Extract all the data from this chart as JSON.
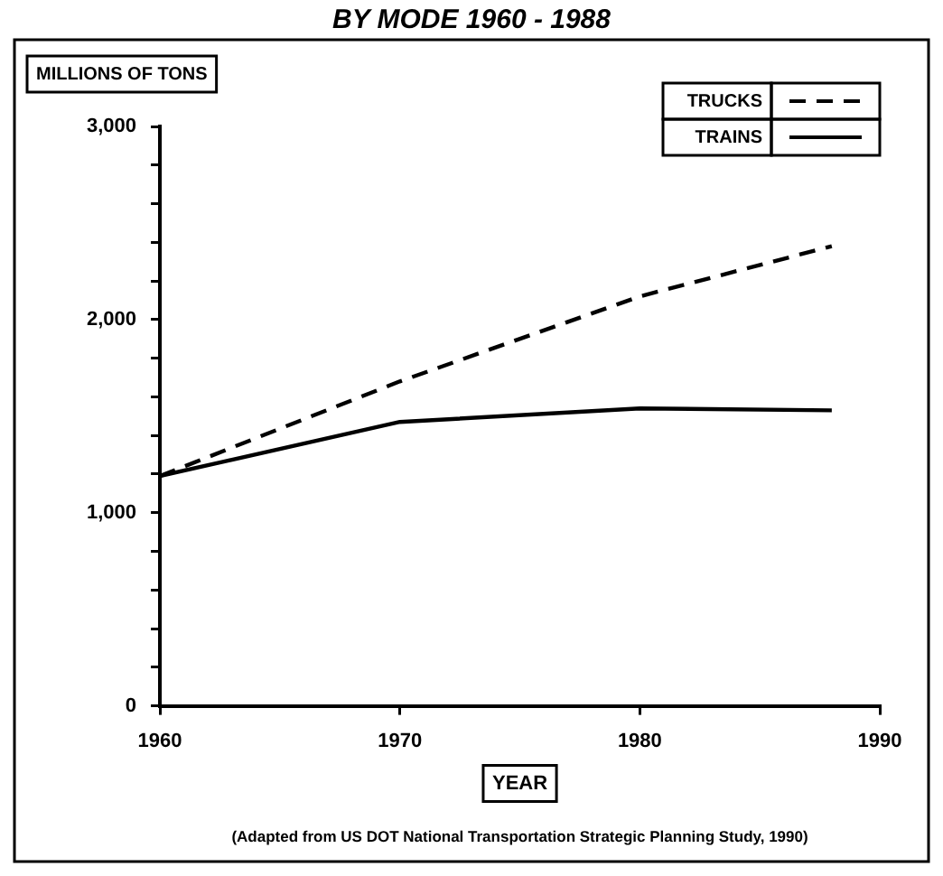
{
  "chart_data": {
    "type": "line",
    "title": "BY MODE 1960 - 1988",
    "ylabel": "MILLIONS OF TONS",
    "xlabel": "YEAR",
    "annotations": [
      "(Adapted from US DOT National Transportation Strategic Planning Study, 1990)"
    ],
    "x": [
      1960,
      1970,
      1980,
      1988
    ],
    "series": [
      {
        "name": "TRUCKS",
        "color": "#000000",
        "line_style": "dashed",
        "values": [
          1190,
          1680,
          2120,
          2380
        ]
      },
      {
        "name": "TRAINS",
        "color": "#000000",
        "line_style": "solid",
        "values": [
          1190,
          1470,
          1540,
          1530
        ]
      }
    ],
    "xlim": [
      1960,
      1990
    ],
    "xticks": [
      1960,
      1970,
      1980,
      1990
    ],
    "ylim": [
      0,
      3000
    ],
    "yticks": [
      0,
      {
        "value": 200,
        "label": null
      },
      {
        "value": 400,
        "label": null
      },
      {
        "value": 600,
        "label": null
      },
      {
        "value": 800,
        "label": null
      },
      {
        "value": 1000,
        "label": "1,000"
      },
      {
        "value": 1200,
        "label": null
      },
      {
        "value": 1400,
        "label": null
      },
      {
        "value": 1600,
        "label": null
      },
      {
        "value": 1800,
        "label": null
      },
      {
        "value": 2000,
        "label": "2,000"
      },
      {
        "value": 2200,
        "label": null
      },
      {
        "value": 2400,
        "label": null
      },
      {
        "value": 2600,
        "label": null
      },
      {
        "value": 2800,
        "label": null
      },
      {
        "value": 3000,
        "label": "3,000"
      }
    ],
    "grid": false,
    "legend": "top right",
    "marker": "none"
  }
}
